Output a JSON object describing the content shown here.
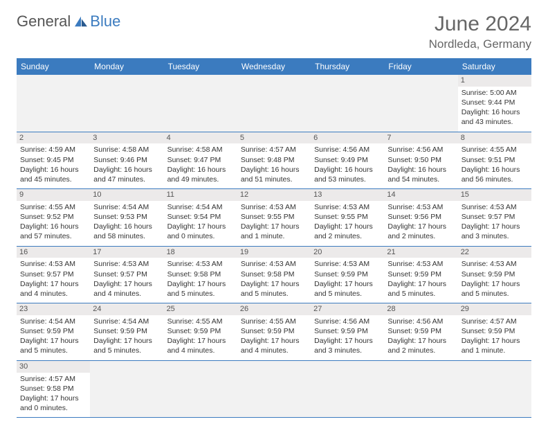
{
  "logo": {
    "text1": "General",
    "text2": "Blue",
    "icon_color": "#3b7bbf"
  },
  "title": "June 2024",
  "location": "Nordleda, Germany",
  "header_bg": "#3b7bbf",
  "header_fg": "#ffffff",
  "day_bg": "#eceaea",
  "border_color": "#3b7bbf",
  "days": [
    "Sunday",
    "Monday",
    "Tuesday",
    "Wednesday",
    "Thursday",
    "Friday",
    "Saturday"
  ],
  "weeks": [
    [
      null,
      null,
      null,
      null,
      null,
      null,
      {
        "n": "1",
        "sr": "5:00 AM",
        "ss": "9:44 PM",
        "dl": "16 hours and 43 minutes."
      }
    ],
    [
      {
        "n": "2",
        "sr": "4:59 AM",
        "ss": "9:45 PM",
        "dl": "16 hours and 45 minutes."
      },
      {
        "n": "3",
        "sr": "4:58 AM",
        "ss": "9:46 PM",
        "dl": "16 hours and 47 minutes."
      },
      {
        "n": "4",
        "sr": "4:58 AM",
        "ss": "9:47 PM",
        "dl": "16 hours and 49 minutes."
      },
      {
        "n": "5",
        "sr": "4:57 AM",
        "ss": "9:48 PM",
        "dl": "16 hours and 51 minutes."
      },
      {
        "n": "6",
        "sr": "4:56 AM",
        "ss": "9:49 PM",
        "dl": "16 hours and 53 minutes."
      },
      {
        "n": "7",
        "sr": "4:56 AM",
        "ss": "9:50 PM",
        "dl": "16 hours and 54 minutes."
      },
      {
        "n": "8",
        "sr": "4:55 AM",
        "ss": "9:51 PM",
        "dl": "16 hours and 56 minutes."
      }
    ],
    [
      {
        "n": "9",
        "sr": "4:55 AM",
        "ss": "9:52 PM",
        "dl": "16 hours and 57 minutes."
      },
      {
        "n": "10",
        "sr": "4:54 AM",
        "ss": "9:53 PM",
        "dl": "16 hours and 58 minutes."
      },
      {
        "n": "11",
        "sr": "4:54 AM",
        "ss": "9:54 PM",
        "dl": "17 hours and 0 minutes."
      },
      {
        "n": "12",
        "sr": "4:53 AM",
        "ss": "9:55 PM",
        "dl": "17 hours and 1 minute."
      },
      {
        "n": "13",
        "sr": "4:53 AM",
        "ss": "9:55 PM",
        "dl": "17 hours and 2 minutes."
      },
      {
        "n": "14",
        "sr": "4:53 AM",
        "ss": "9:56 PM",
        "dl": "17 hours and 2 minutes."
      },
      {
        "n": "15",
        "sr": "4:53 AM",
        "ss": "9:57 PM",
        "dl": "17 hours and 3 minutes."
      }
    ],
    [
      {
        "n": "16",
        "sr": "4:53 AM",
        "ss": "9:57 PM",
        "dl": "17 hours and 4 minutes."
      },
      {
        "n": "17",
        "sr": "4:53 AM",
        "ss": "9:57 PM",
        "dl": "17 hours and 4 minutes."
      },
      {
        "n": "18",
        "sr": "4:53 AM",
        "ss": "9:58 PM",
        "dl": "17 hours and 5 minutes."
      },
      {
        "n": "19",
        "sr": "4:53 AM",
        "ss": "9:58 PM",
        "dl": "17 hours and 5 minutes."
      },
      {
        "n": "20",
        "sr": "4:53 AM",
        "ss": "9:59 PM",
        "dl": "17 hours and 5 minutes."
      },
      {
        "n": "21",
        "sr": "4:53 AM",
        "ss": "9:59 PM",
        "dl": "17 hours and 5 minutes."
      },
      {
        "n": "22",
        "sr": "4:53 AM",
        "ss": "9:59 PM",
        "dl": "17 hours and 5 minutes."
      }
    ],
    [
      {
        "n": "23",
        "sr": "4:54 AM",
        "ss": "9:59 PM",
        "dl": "17 hours and 5 minutes."
      },
      {
        "n": "24",
        "sr": "4:54 AM",
        "ss": "9:59 PM",
        "dl": "17 hours and 5 minutes."
      },
      {
        "n": "25",
        "sr": "4:55 AM",
        "ss": "9:59 PM",
        "dl": "17 hours and 4 minutes."
      },
      {
        "n": "26",
        "sr": "4:55 AM",
        "ss": "9:59 PM",
        "dl": "17 hours and 4 minutes."
      },
      {
        "n": "27",
        "sr": "4:56 AM",
        "ss": "9:59 PM",
        "dl": "17 hours and 3 minutes."
      },
      {
        "n": "28",
        "sr": "4:56 AM",
        "ss": "9:59 PM",
        "dl": "17 hours and 2 minutes."
      },
      {
        "n": "29",
        "sr": "4:57 AM",
        "ss": "9:59 PM",
        "dl": "17 hours and 1 minute."
      }
    ],
    [
      {
        "n": "30",
        "sr": "4:57 AM",
        "ss": "9:58 PM",
        "dl": "17 hours and 0 minutes."
      },
      null,
      null,
      null,
      null,
      null,
      null
    ]
  ],
  "labels": {
    "sunrise": "Sunrise:",
    "sunset": "Sunset:",
    "daylight": "Daylight:"
  }
}
